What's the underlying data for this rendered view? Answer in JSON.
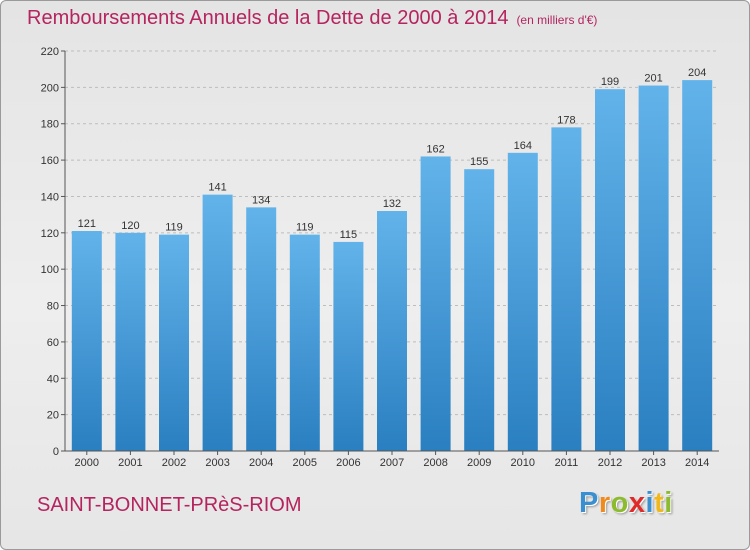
{
  "chart_data": {
    "type": "bar",
    "title": "Remboursements Annuels de la Dette de 2000 à 2014",
    "subtitle": "(en milliers d'€)",
    "categories": [
      "2000",
      "2001",
      "2002",
      "2003",
      "2004",
      "2005",
      "2006",
      "2007",
      "2008",
      "2009",
      "2010",
      "2011",
      "2012",
      "2013",
      "2014"
    ],
    "values": [
      121,
      120,
      119,
      141,
      134,
      119,
      115,
      132,
      162,
      155,
      164,
      178,
      199,
      201,
      204
    ],
    "ylim": [
      0,
      220
    ],
    "yticks": [
      0,
      20,
      40,
      60,
      80,
      100,
      120,
      140,
      160,
      180,
      200,
      220
    ],
    "xlabel": "",
    "ylabel": "",
    "grid": true
  },
  "location": "SAINT-BONNET-PRèS-RIOM",
  "logo": {
    "text": "Proxiti",
    "letters": [
      {
        "char": "P",
        "color": "#3a8fd0"
      },
      {
        "char": "r",
        "color": "#f08a1c"
      },
      {
        "char": "o",
        "color": "#8dbb2e"
      },
      {
        "char": "x",
        "color": "#e02a2a"
      },
      {
        "char": "i",
        "color": "#3a8fd0"
      },
      {
        "char": "t",
        "color": "#f0b81c"
      },
      {
        "char": "i",
        "color": "#8dbb2e"
      }
    ]
  },
  "colors": {
    "title": "#b5245f",
    "bar_top": "#62b3ea",
    "bar_bottom": "#2a7fc0",
    "grid": "#bdbdbd",
    "axis": "#555555"
  }
}
